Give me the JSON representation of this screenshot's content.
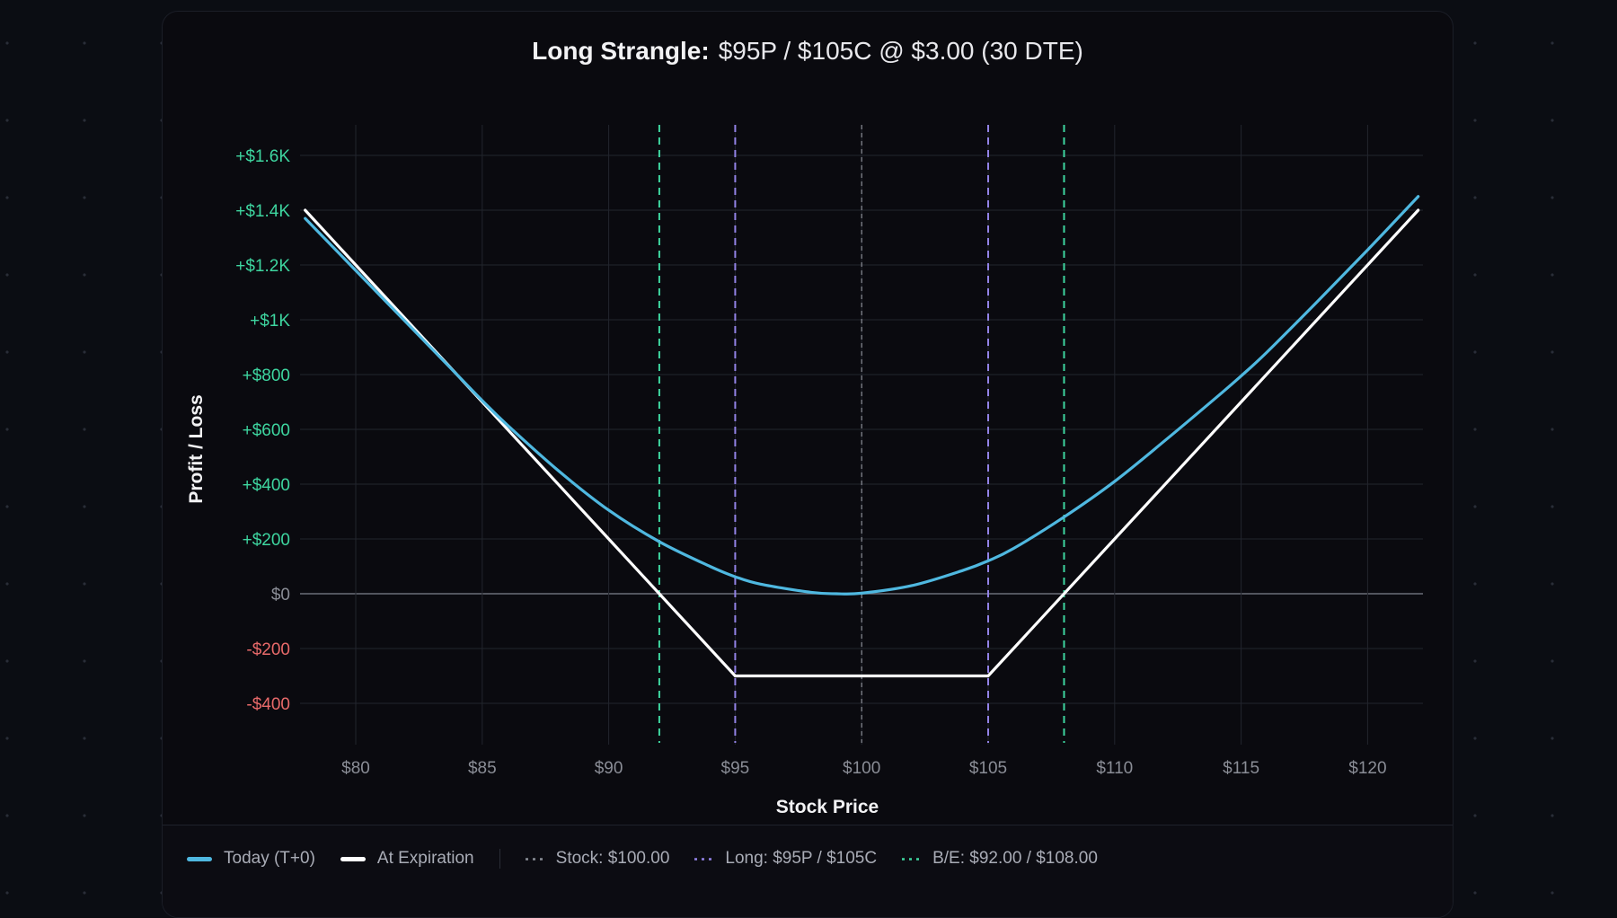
{
  "title": {
    "strategy": "Long Strangle:",
    "details": "$95P / $105C @ $3.00 (30 DTE)"
  },
  "colors": {
    "background": "#0b0d13",
    "card": "#0a0a0f",
    "today_line": "#4fb8e0",
    "expiration_line": "#ffffff",
    "stock_marker": "#8a8d96",
    "strike_marker": "#9282e6",
    "breakeven_marker": "#3ed6a0",
    "positive_label": "#3ed6a0",
    "negative_label": "#e86a6a",
    "zero_label": "#8a8d96",
    "tick_label": "#8a8d96"
  },
  "legend": {
    "today": "Today (T+0)",
    "expiration": "At Expiration",
    "stock": "Stock: $100.00",
    "strikes": "Long: $95P / $105C",
    "breakeven": "B/E: $92.00 / $108.00"
  },
  "chart_data": {
    "type": "line",
    "title": "Long Strangle: $95P / $105C @ $3.00 (30 DTE)",
    "xlabel": "Stock Price",
    "ylabel": "Profit / Loss",
    "xlim": [
      78,
      122
    ],
    "ylim": [
      -480,
      1700
    ],
    "grid": true,
    "legend_position": "bottom",
    "x_ticks": [
      80,
      85,
      90,
      95,
      100,
      105,
      110,
      115,
      120
    ],
    "x_tick_labels": [
      "$80",
      "$85",
      "$90",
      "$95",
      "$100",
      "$105",
      "$110",
      "$115",
      "$120"
    ],
    "y_ticks": [
      1600,
      1400,
      1200,
      1000,
      800,
      600,
      400,
      200,
      0,
      -200,
      -400
    ],
    "y_tick_labels": [
      "+$1.6K",
      "+$1.4K",
      "+$1.2K",
      "+$1K",
      "+$800",
      "+$600",
      "+$400",
      "+$200",
      "$0",
      "-$200",
      "-$400"
    ],
    "series": [
      {
        "name": "Today (T+0)",
        "x": [
          78,
          80,
          82,
          84,
          85,
          86,
          88,
          90,
          92,
          94,
          95,
          96,
          98,
          99,
          100,
          102,
          104,
          105,
          106,
          108,
          110,
          112,
          114,
          115,
          116,
          118,
          120,
          122
        ],
        "y": [
          1370,
          1180,
          990,
          800,
          705,
          615,
          450,
          305,
          190,
          100,
          62,
          35,
          5,
          0,
          2,
          30,
          85,
          120,
          165,
          280,
          410,
          560,
          715,
          795,
          880,
          1065,
          1255,
          1450
        ]
      },
      {
        "name": "At Expiration",
        "x": [
          78,
          95,
          105,
          122
        ],
        "y": [
          1400,
          -300,
          -300,
          1400
        ]
      }
    ],
    "vertical_markers": [
      {
        "name": "Stock",
        "x": 100,
        "style": "dashed",
        "color": "#8a8d96"
      },
      {
        "name": "Long Put Strike",
        "x": 95,
        "style": "dashed",
        "color": "#9282e6"
      },
      {
        "name": "Long Call Strike",
        "x": 105,
        "style": "dashed",
        "color": "#9282e6"
      },
      {
        "name": "Breakeven Low",
        "x": 92,
        "style": "dashed",
        "color": "#3ed6a0"
      },
      {
        "name": "Breakeven High",
        "x": 108,
        "style": "dashed",
        "color": "#3ed6a0"
      }
    ]
  }
}
